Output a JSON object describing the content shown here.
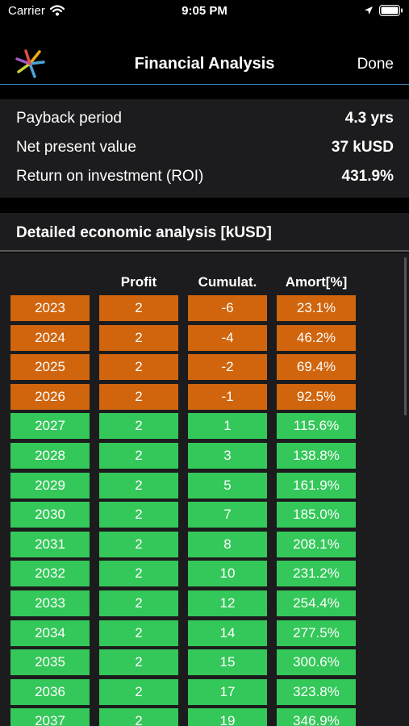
{
  "status_bar": {
    "carrier": "Carrier",
    "time": "9:05 PM",
    "icons": [
      "wifi-icon",
      "location-icon",
      "battery-icon"
    ]
  },
  "nav": {
    "title": "Financial Analysis",
    "done_label": "Done",
    "logo": "app-logo"
  },
  "summary": [
    {
      "label": "Payback period",
      "value": "4.3 yrs"
    },
    {
      "label": "Net present value",
      "value": "37 kUSD"
    },
    {
      "label": "Return on investment (ROI)",
      "value": "431.9%"
    }
  ],
  "detail": {
    "title": "Detailed economic analysis   [kUSD]",
    "columns": [
      "",
      "Profit",
      "Cumulat.",
      "Amort[%]"
    ],
    "rows": [
      {
        "year": "2023",
        "profit": "2",
        "cumulative": "-6",
        "amort": "23.1%"
      },
      {
        "year": "2024",
        "profit": "2",
        "cumulative": "-4",
        "amort": "46.2%"
      },
      {
        "year": "2025",
        "profit": "2",
        "cumulative": "-2",
        "amort": "69.4%"
      },
      {
        "year": "2026",
        "profit": "2",
        "cumulative": "-1",
        "amort": "92.5%"
      },
      {
        "year": "2027",
        "profit": "2",
        "cumulative": "1",
        "amort": "115.6%"
      },
      {
        "year": "2028",
        "profit": "2",
        "cumulative": "3",
        "amort": "138.8%"
      },
      {
        "year": "2029",
        "profit": "2",
        "cumulative": "5",
        "amort": "161.9%"
      },
      {
        "year": "2030",
        "profit": "2",
        "cumulative": "7",
        "amort": "185.0%"
      },
      {
        "year": "2031",
        "profit": "2",
        "cumulative": "8",
        "amort": "208.1%"
      },
      {
        "year": "2032",
        "profit": "2",
        "cumulative": "10",
        "amort": "231.2%"
      },
      {
        "year": "2033",
        "profit": "2",
        "cumulative": "12",
        "amort": "254.4%"
      },
      {
        "year": "2034",
        "profit": "2",
        "cumulative": "14",
        "amort": "277.5%"
      },
      {
        "year": "2035",
        "profit": "2",
        "cumulative": "15",
        "amort": "300.6%"
      },
      {
        "year": "2036",
        "profit": "2",
        "cumulative": "17",
        "amort": "323.8%"
      },
      {
        "year": "2037",
        "profit": "2",
        "cumulative": "19",
        "amort": "346.9%"
      }
    ]
  },
  "colors": {
    "negative": "#d0650e",
    "positive": "#34c759",
    "panel": "#1c1c1e",
    "nav_divider": "#3a8fc0"
  }
}
